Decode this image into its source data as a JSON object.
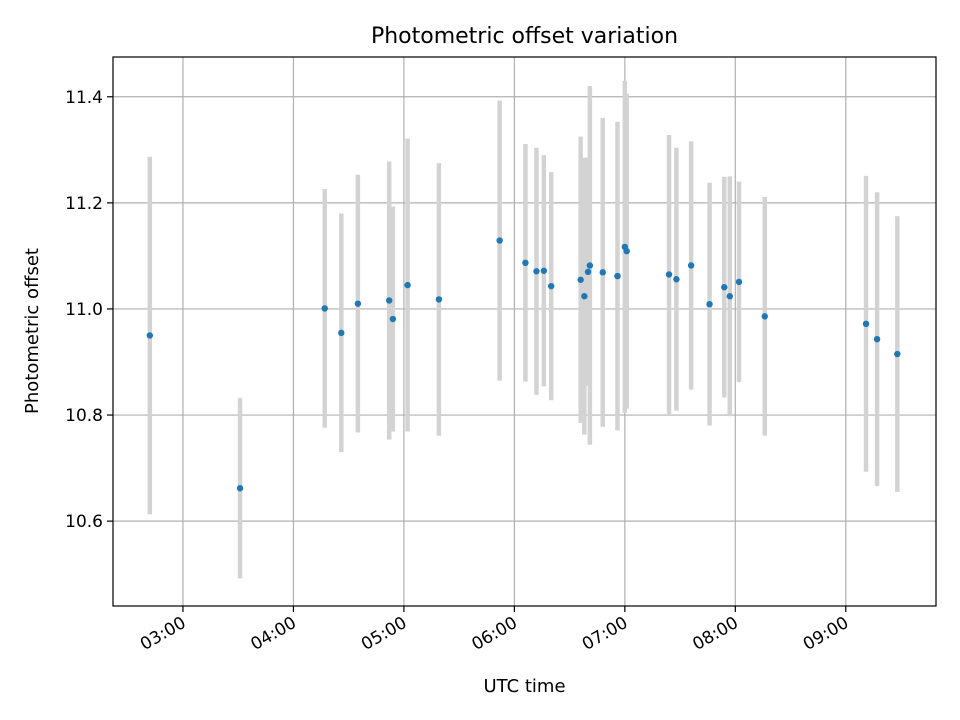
{
  "chart_data": {
    "type": "scatter",
    "title": "Photometric offset variation",
    "xlabel": "UTC time",
    "ylabel": "Photometric offset",
    "x_ticks": [
      "03:00",
      "04:00",
      "05:00",
      "06:00",
      "07:00",
      "08:00",
      "09:00"
    ],
    "y_ticks": [
      "10.6",
      "10.8",
      "11.0",
      "11.2",
      "11.4"
    ],
    "xlim": [
      "02:22",
      "09:49"
    ],
    "ylim": [
      10.44,
      11.475
    ],
    "grid": true,
    "marker_color": "#1f77b4",
    "errorbar_color": "#d3d3d3",
    "points": [
      {
        "time": "02:42",
        "y": 10.95,
        "err": 0.337
      },
      {
        "time": "03:31",
        "y": 10.662,
        "err": 0.17
      },
      {
        "time": "04:17",
        "y": 11.001,
        "err": 0.225
      },
      {
        "time": "04:26",
        "y": 10.955,
        "err": 0.225
      },
      {
        "time": "04:35",
        "y": 11.01,
        "err": 0.243
      },
      {
        "time": "04:52",
        "y": 11.016,
        "err": 0.262
      },
      {
        "time": "04:54",
        "y": 10.981,
        "err": 0.212
      },
      {
        "time": "05:02",
        "y": 11.045,
        "err": 0.276
      },
      {
        "time": "05:19",
        "y": 11.018,
        "err": 0.257
      },
      {
        "time": "05:52",
        "y": 11.129,
        "err": 0.264
      },
      {
        "time": "06:06",
        "y": 11.087,
        "err": 0.224
      },
      {
        "time": "06:12",
        "y": 11.071,
        "err": 0.233
      },
      {
        "time": "06:16",
        "y": 11.072,
        "err": 0.218
      },
      {
        "time": "06:20",
        "y": 11.043,
        "err": 0.215
      },
      {
        "time": "06:36",
        "y": 11.055,
        "err": 0.27
      },
      {
        "time": "06:38",
        "y": 11.024,
        "err": 0.261
      },
      {
        "time": "06:40",
        "y": 11.07,
        "err": 0.215
      },
      {
        "time": "06:41",
        "y": 11.082,
        "err": 0.338
      },
      {
        "time": "06:48",
        "y": 11.069,
        "err": 0.291
      },
      {
        "time": "06:56",
        "y": 11.062,
        "err": 0.291
      },
      {
        "time": "07:00",
        "y": 11.117,
        "err": 0.313
      },
      {
        "time": "07:01",
        "y": 11.109,
        "err": 0.297
      },
      {
        "time": "07:24",
        "y": 11.065,
        "err": 0.263
      },
      {
        "time": "07:28",
        "y": 11.056,
        "err": 0.248
      },
      {
        "time": "07:36",
        "y": 11.082,
        "err": 0.234
      },
      {
        "time": "07:46",
        "y": 11.009,
        "err": 0.229
      },
      {
        "time": "07:54",
        "y": 11.041,
        "err": 0.208
      },
      {
        "time": "07:57",
        "y": 11.024,
        "err": 0.226
      },
      {
        "time": "08:02",
        "y": 11.051,
        "err": 0.189
      },
      {
        "time": "08:16",
        "y": 10.986,
        "err": 0.225
      },
      {
        "time": "09:11",
        "y": 10.972,
        "err": 0.279
      },
      {
        "time": "09:17",
        "y": 10.943,
        "err": 0.277
      },
      {
        "time": "09:28",
        "y": 10.915,
        "err": 0.26
      }
    ]
  }
}
